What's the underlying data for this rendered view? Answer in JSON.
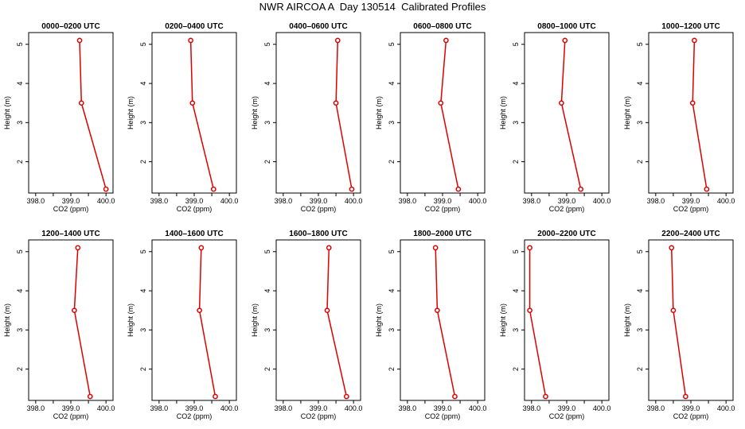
{
  "title": "NWR AIRCOA A  Day 130514  Calibrated Profiles",
  "colors": {
    "profile": "#dd0000",
    "axes": "#000000",
    "background": "#ffffff"
  },
  "chart_data": [
    {
      "type": "line",
      "title": "0000–0200 UTC",
      "xlabel": "CO2 (ppm)",
      "ylabel": "Height (m)",
      "xlim": [
        397.8,
        400.2
      ],
      "ylim": [
        1.2,
        5.3
      ],
      "xticks": [
        "398.0",
        "399.0",
        "400.0"
      ],
      "yticks": [
        "2",
        "3",
        "4",
        "5"
      ],
      "series": [
        {
          "x": [
            399.25,
            399.3,
            400.0
          ],
          "y": [
            5.1,
            3.5,
            1.3
          ]
        }
      ]
    },
    {
      "type": "line",
      "title": "0200–0400 UTC",
      "xlabel": "CO2 (ppm)",
      "ylabel": "Height (m)",
      "xlim": [
        397.8,
        400.2
      ],
      "ylim": [
        1.2,
        5.3
      ],
      "xticks": [
        "398.0",
        "399.0",
        "400.0"
      ],
      "yticks": [
        "2",
        "3",
        "4",
        "5"
      ],
      "series": [
        {
          "x": [
            398.9,
            398.95,
            399.55
          ],
          "y": [
            5.1,
            3.5,
            1.3
          ]
        }
      ]
    },
    {
      "type": "line",
      "title": "0400–0600 UTC",
      "xlabel": "CO2 (ppm)",
      "ylabel": "Height (m)",
      "xlim": [
        397.8,
        400.2
      ],
      "ylim": [
        1.2,
        5.3
      ],
      "xticks": [
        "398.0",
        "399.0",
        "400.0"
      ],
      "yticks": [
        "2",
        "3",
        "4",
        "5"
      ],
      "series": [
        {
          "x": [
            399.55,
            399.5,
            399.95
          ],
          "y": [
            5.1,
            3.5,
            1.3
          ]
        }
      ]
    },
    {
      "type": "line",
      "title": "0600–0800 UTC",
      "xlabel": "CO2 (ppm)",
      "ylabel": "Height (m)",
      "xlim": [
        397.8,
        400.2
      ],
      "ylim": [
        1.2,
        5.3
      ],
      "xticks": [
        "398.0",
        "399.0",
        "400.0"
      ],
      "yticks": [
        "2",
        "3",
        "4",
        "5"
      ],
      "series": [
        {
          "x": [
            399.1,
            398.95,
            399.45
          ],
          "y": [
            5.1,
            3.5,
            1.3
          ]
        }
      ]
    },
    {
      "type": "line",
      "title": "0800–1000 UTC",
      "xlabel": "CO2 (ppm)",
      "ylabel": "Height (m)",
      "xlim": [
        397.8,
        400.2
      ],
      "ylim": [
        1.2,
        5.3
      ],
      "xticks": [
        "398.0",
        "399.0",
        "400.0"
      ],
      "yticks": [
        "2",
        "3",
        "4",
        "5"
      ],
      "series": [
        {
          "x": [
            398.95,
            398.85,
            399.4
          ],
          "y": [
            5.1,
            3.5,
            1.3
          ]
        }
      ]
    },
    {
      "type": "line",
      "title": "1000–1200 UTC",
      "xlabel": "CO2 (ppm)",
      "ylabel": "Height (m)",
      "xlim": [
        397.8,
        400.2
      ],
      "ylim": [
        1.2,
        5.3
      ],
      "xticks": [
        "398.0",
        "399.0",
        "400.0"
      ],
      "yticks": [
        "2",
        "3",
        "4",
        "5"
      ],
      "series": [
        {
          "x": [
            399.1,
            399.05,
            399.45
          ],
          "y": [
            5.1,
            3.5,
            1.3
          ]
        }
      ]
    },
    {
      "type": "line",
      "title": "1200–1400 UTC",
      "xlabel": "CO2 (ppm)",
      "ylabel": "Height (m)",
      "xlim": [
        397.8,
        400.2
      ],
      "ylim": [
        1.2,
        5.3
      ],
      "xticks": [
        "398.0",
        "399.0",
        "400.0"
      ],
      "yticks": [
        "2",
        "3",
        "4",
        "5"
      ],
      "series": [
        {
          "x": [
            399.2,
            399.1,
            399.55
          ],
          "y": [
            5.1,
            3.5,
            1.3
          ]
        }
      ]
    },
    {
      "type": "line",
      "title": "1400–1600 UTC",
      "xlabel": "CO2 (ppm)",
      "ylabel": "Height (m)",
      "xlim": [
        397.8,
        400.2
      ],
      "ylim": [
        1.2,
        5.3
      ],
      "xticks": [
        "398.0",
        "399.0",
        "400.0"
      ],
      "yticks": [
        "2",
        "3",
        "4",
        "5"
      ],
      "series": [
        {
          "x": [
            399.2,
            399.15,
            399.6
          ],
          "y": [
            5.1,
            3.5,
            1.3
          ]
        }
      ]
    },
    {
      "type": "line",
      "title": "1600–1800 UTC",
      "xlabel": "CO2 (ppm)",
      "ylabel": "Height (m)",
      "xlim": [
        397.8,
        400.2
      ],
      "ylim": [
        1.2,
        5.3
      ],
      "xticks": [
        "398.0",
        "399.0",
        "400.0"
      ],
      "yticks": [
        "2",
        "3",
        "4",
        "5"
      ],
      "series": [
        {
          "x": [
            399.3,
            399.25,
            399.8
          ],
          "y": [
            5.1,
            3.5,
            1.3
          ]
        }
      ]
    },
    {
      "type": "line",
      "title": "1800–2000 UTC",
      "xlabel": "CO2 (ppm)",
      "ylabel": "Height (m)",
      "xlim": [
        397.8,
        400.2
      ],
      "ylim": [
        1.2,
        5.3
      ],
      "xticks": [
        "398.0",
        "399.0",
        "400.0"
      ],
      "yticks": [
        "2",
        "3",
        "4",
        "5"
      ],
      "series": [
        {
          "x": [
            398.8,
            398.85,
            399.35
          ],
          "y": [
            5.1,
            3.5,
            1.3
          ]
        }
      ]
    },
    {
      "type": "line",
      "title": "2000–2200 UTC",
      "xlabel": "CO2 (ppm)",
      "ylabel": "Height (m)",
      "xlim": [
        397.8,
        400.2
      ],
      "ylim": [
        1.2,
        5.3
      ],
      "xticks": [
        "398.0",
        "399.0",
        "400.0"
      ],
      "yticks": [
        "2",
        "3",
        "4",
        "5"
      ],
      "series": [
        {
          "x": [
            397.95,
            397.95,
            398.4
          ],
          "y": [
            5.1,
            3.5,
            1.3
          ]
        }
      ]
    },
    {
      "type": "line",
      "title": "2200–2400 UTC",
      "xlabel": "CO2 (ppm)",
      "ylabel": "Height (m)",
      "xlim": [
        397.8,
        400.2
      ],
      "ylim": [
        1.2,
        5.3
      ],
      "xticks": [
        "398.0",
        "399.0",
        "400.0"
      ],
      "yticks": [
        "2",
        "3",
        "4",
        "5"
      ],
      "series": [
        {
          "x": [
            398.45,
            398.5,
            398.85
          ],
          "y": [
            5.1,
            3.5,
            1.3
          ]
        }
      ]
    }
  ]
}
